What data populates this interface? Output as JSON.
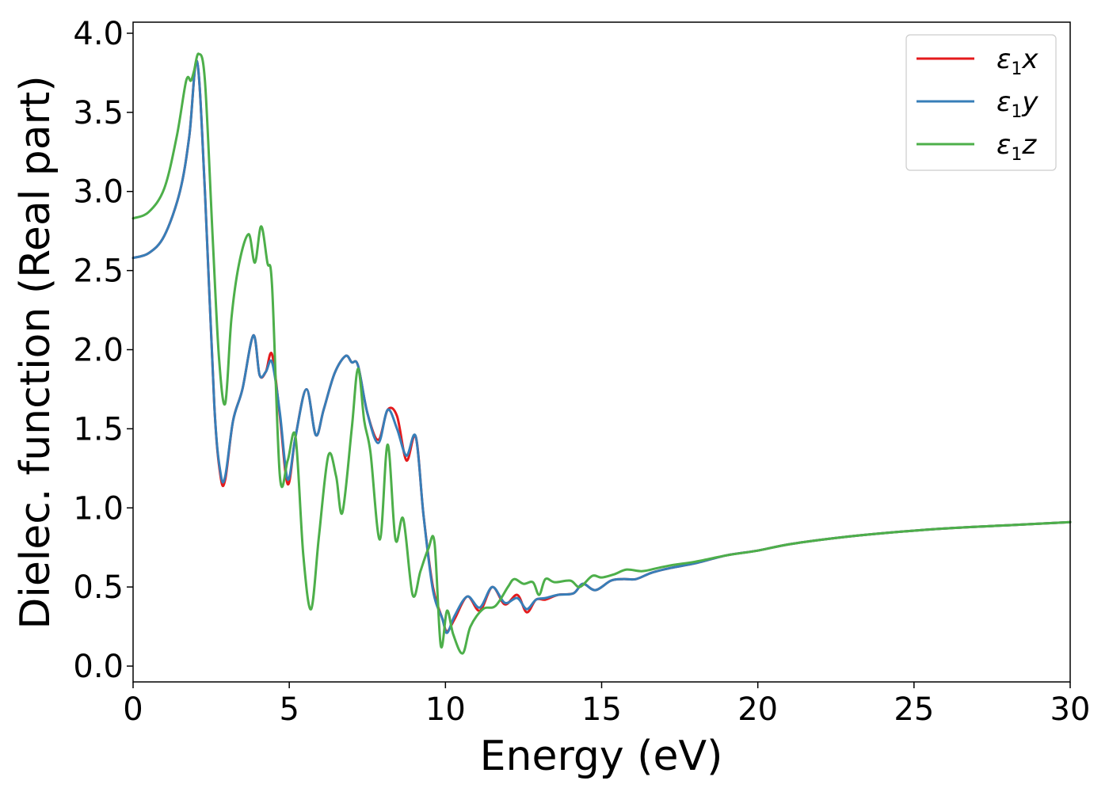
{
  "chart_data": {
    "type": "line",
    "xlabel": "Energy (eV)",
    "ylabel": "Dielec. function (Real part)",
    "xlim": [
      0,
      30
    ],
    "ylim": [
      -0.1,
      4.07
    ],
    "xticks": [
      "0",
      "5",
      "10",
      "15",
      "20",
      "25",
      "30"
    ],
    "yticks": [
      "0.0",
      "0.5",
      "1.0",
      "1.5",
      "2.0",
      "2.5",
      "3.0",
      "3.5",
      "4.0"
    ],
    "grid": false,
    "legend_position": "top-right",
    "series": [
      {
        "name": "ε1x",
        "legend_main": "ε",
        "legend_sub": "1",
        "legend_var": "x",
        "color": "#e41a1c",
        "x": [
          0,
          0.5,
          1.0,
          1.5,
          1.8,
          2.05,
          2.3,
          2.6,
          2.8,
          2.95,
          3.2,
          3.5,
          3.85,
          4.05,
          4.25,
          4.45,
          4.7,
          4.95,
          5.2,
          5.55,
          5.85,
          6.1,
          6.45,
          6.8,
          7.0,
          7.2,
          7.5,
          7.85,
          8.15,
          8.45,
          8.75,
          9.05,
          9.3,
          9.6,
          9.9,
          10.05,
          10.3,
          10.7,
          11.1,
          11.5,
          11.9,
          12.3,
          12.6,
          12.9,
          13.2,
          13.6,
          14.1,
          14.4,
          14.8,
          15.3,
          15.7,
          16.1,
          16.6,
          17.2,
          18,
          19,
          20,
          21,
          22.5,
          24,
          26,
          28,
          30
        ],
        "y": [
          2.58,
          2.61,
          2.72,
          3.0,
          3.35,
          3.82,
          3.0,
          1.65,
          1.2,
          1.18,
          1.55,
          1.75,
          2.09,
          1.84,
          1.86,
          1.97,
          1.58,
          1.15,
          1.45,
          1.75,
          1.46,
          1.62,
          1.85,
          1.96,
          1.92,
          1.9,
          1.6,
          1.43,
          1.62,
          1.58,
          1.3,
          1.45,
          0.95,
          0.5,
          0.3,
          0.22,
          0.3,
          0.44,
          0.35,
          0.5,
          0.39,
          0.45,
          0.34,
          0.42,
          0.42,
          0.45,
          0.46,
          0.52,
          0.48,
          0.54,
          0.55,
          0.55,
          0.59,
          0.62,
          0.65,
          0.7,
          0.73,
          0.77,
          0.81,
          0.84,
          0.87,
          0.89,
          0.91
        ]
      },
      {
        "name": "ε1y",
        "legend_main": "ε",
        "legend_sub": "1",
        "legend_var": "y",
        "color": "#377eb8",
        "x": [
          0,
          0.5,
          1.0,
          1.5,
          1.8,
          2.05,
          2.3,
          2.6,
          2.8,
          2.95,
          3.2,
          3.5,
          3.85,
          4.05,
          4.25,
          4.45,
          4.7,
          4.95,
          5.2,
          5.55,
          5.85,
          6.1,
          6.45,
          6.8,
          7.0,
          7.2,
          7.5,
          7.85,
          8.15,
          8.45,
          8.75,
          9.05,
          9.3,
          9.6,
          9.9,
          10.05,
          10.3,
          10.7,
          11.1,
          11.5,
          11.9,
          12.3,
          12.6,
          12.9,
          13.2,
          13.6,
          14.1,
          14.4,
          14.8,
          15.3,
          15.7,
          16.1,
          16.6,
          17.2,
          18,
          19,
          20,
          21,
          22.5,
          24,
          26,
          28,
          30
        ],
        "y": [
          2.58,
          2.61,
          2.72,
          3.0,
          3.35,
          3.82,
          3.0,
          1.65,
          1.22,
          1.2,
          1.55,
          1.75,
          2.09,
          1.84,
          1.86,
          1.92,
          1.6,
          1.18,
          1.45,
          1.75,
          1.46,
          1.62,
          1.85,
          1.96,
          1.92,
          1.9,
          1.6,
          1.41,
          1.62,
          1.5,
          1.33,
          1.45,
          0.95,
          0.48,
          0.3,
          0.21,
          0.32,
          0.44,
          0.37,
          0.5,
          0.4,
          0.43,
          0.36,
          0.42,
          0.43,
          0.45,
          0.46,
          0.52,
          0.48,
          0.54,
          0.55,
          0.55,
          0.59,
          0.62,
          0.65,
          0.7,
          0.73,
          0.77,
          0.81,
          0.84,
          0.87,
          0.89,
          0.91
        ]
      },
      {
        "name": "ε1z",
        "legend_main": "ε",
        "legend_sub": "1",
        "legend_var": "z",
        "color": "#4daf4a",
        "x": [
          0,
          0.5,
          1.0,
          1.4,
          1.7,
          1.85,
          1.95,
          2.1,
          2.3,
          2.55,
          2.75,
          2.95,
          3.15,
          3.4,
          3.7,
          3.9,
          4.1,
          4.3,
          4.45,
          4.7,
          4.95,
          5.2,
          5.45,
          5.7,
          5.95,
          6.25,
          6.5,
          6.7,
          7.0,
          7.2,
          7.4,
          7.6,
          7.9,
          8.15,
          8.4,
          8.65,
          8.95,
          9.2,
          9.45,
          9.65,
          9.85,
          10.05,
          10.25,
          10.55,
          10.8,
          11.2,
          11.6,
          12.0,
          12.2,
          12.5,
          12.8,
          13.0,
          13.2,
          13.5,
          14.0,
          14.3,
          14.7,
          15.0,
          15.4,
          15.8,
          16.3,
          16.8,
          17.3,
          18,
          19,
          20,
          21,
          22.5,
          24,
          26,
          28,
          30
        ],
        "y": [
          2.83,
          2.87,
          3.02,
          3.35,
          3.7,
          3.7,
          3.76,
          3.87,
          3.7,
          2.7,
          1.95,
          1.66,
          2.2,
          2.55,
          2.73,
          2.55,
          2.78,
          2.55,
          2.4,
          1.2,
          1.3,
          1.45,
          0.7,
          0.36,
          0.82,
          1.33,
          1.2,
          0.97,
          1.5,
          1.88,
          1.55,
          1.35,
          0.8,
          1.4,
          0.8,
          0.93,
          0.45,
          0.6,
          0.74,
          0.78,
          0.13,
          0.35,
          0.2,
          0.08,
          0.25,
          0.36,
          0.38,
          0.5,
          0.55,
          0.52,
          0.53,
          0.45,
          0.55,
          0.53,
          0.54,
          0.5,
          0.57,
          0.56,
          0.58,
          0.61,
          0.6,
          0.62,
          0.64,
          0.66,
          0.7,
          0.73,
          0.77,
          0.81,
          0.84,
          0.87,
          0.89,
          0.91
        ]
      }
    ]
  }
}
